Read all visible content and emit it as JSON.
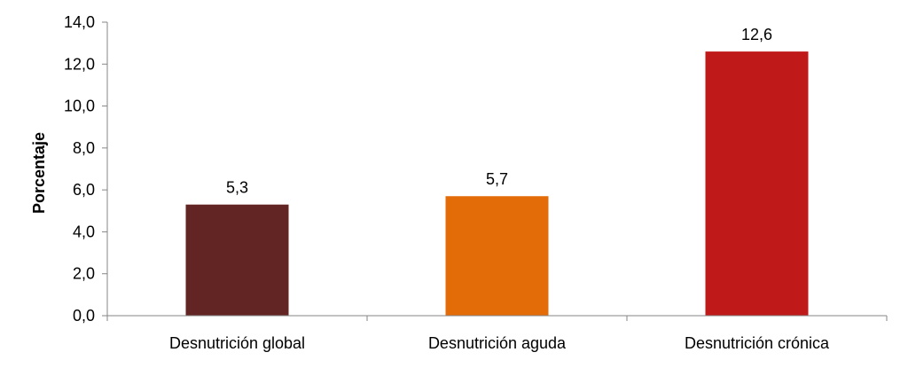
{
  "chart_data": {
    "type": "bar",
    "title": "",
    "xlabel": "",
    "ylabel": "Porcentaje",
    "categories": [
      "Desnutrición global",
      "Desnutrición aguda",
      "Desnutrición crónica"
    ],
    "values": [
      5.3,
      5.7,
      12.6
    ],
    "value_labels": [
      "5,3",
      "5,7",
      "12,6"
    ],
    "colors": [
      "#632523",
      "#E36C09",
      "#C0191A"
    ],
    "ylim": [
      0,
      14
    ],
    "yticks": [
      0,
      2,
      4,
      6,
      8,
      10,
      12,
      14
    ],
    "ytick_labels": [
      "0,0",
      "2,0",
      "4,0",
      "6,0",
      "8,0",
      "10,0",
      "12,0",
      "14,0"
    ],
    "grid": false,
    "legend": "none"
  }
}
